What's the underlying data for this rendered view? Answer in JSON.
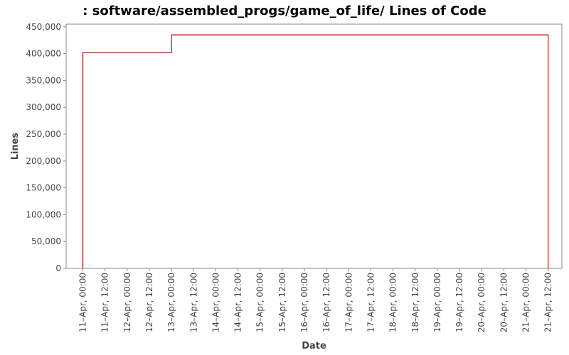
{
  "chart_data": {
    "type": "line",
    "title": ": software/assembled_progs/game_of_life/ Lines of Code",
    "xlabel": "Date",
    "ylabel": "Lines",
    "x_ticks": [
      "11–Apr, 00:00",
      "11–Apr, 12:00",
      "12–Apr, 00:00",
      "12–Apr, 12:00",
      "13–Apr, 00:00",
      "13–Apr, 12:00",
      "14–Apr, 00:00",
      "14–Apr, 12:00",
      "15–Apr, 00:00",
      "15–Apr, 12:00",
      "16–Apr, 00:00",
      "16–Apr, 12:00",
      "17–Apr, 00:00",
      "17–Apr, 12:00",
      "18–Apr, 00:00",
      "18–Apr, 12:00",
      "19–Apr, 00:00",
      "19–Apr, 12:00",
      "20–Apr, 00:00",
      "20–Apr, 12:00",
      "21–Apr, 00:00",
      "21–Apr, 12:00"
    ],
    "y_ticks": [
      0,
      50000,
      100000,
      150000,
      200000,
      250000,
      300000,
      350000,
      400000,
      450000
    ],
    "y_tick_labels": [
      "0",
      "50,000",
      "100,000",
      "150,000",
      "200,000",
      "250,000",
      "300,000",
      "350,000",
      "400,000",
      "450,000"
    ],
    "ylim": [
      0,
      455000
    ],
    "grid": false,
    "legend": "none",
    "series_color": "#cc0000",
    "series": [
      {
        "points": [
          {
            "x": "11-Apr 00:00",
            "y": 0
          },
          {
            "x": "11-Apr 00:00",
            "y": 402000
          },
          {
            "x": "13-Apr 00:00",
            "y": 402000
          },
          {
            "x": "13-Apr 00:00",
            "y": 435000
          },
          {
            "x": "21-Apr 12:00",
            "y": 435000
          },
          {
            "x": "21-Apr 12:00",
            "y": 0
          }
        ]
      }
    ]
  }
}
